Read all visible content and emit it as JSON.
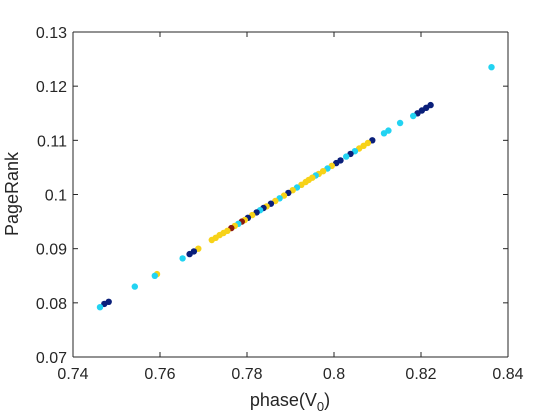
{
  "chart_data": {
    "type": "scatter",
    "title": "",
    "xlabel": {
      "base": "phase(V",
      "sub": "0",
      "close": ")"
    },
    "ylabel": "PageRank",
    "xlim": [
      0.74,
      0.84
    ],
    "ylim": [
      0.07,
      0.13
    ],
    "grid": false,
    "xticks": [
      0.74,
      0.76,
      0.78,
      0.8,
      0.82,
      0.84
    ],
    "yticks": [
      0.07,
      0.08,
      0.09,
      0.1,
      0.11,
      0.12,
      0.13
    ],
    "xtick_labels": [
      "0.74",
      "0.76",
      "0.78",
      "0.8",
      "0.82",
      "0.84"
    ],
    "ytick_labels": [
      "0.07",
      "0.08",
      "0.09",
      "0.1",
      "0.11",
      "0.12",
      "0.13"
    ],
    "colors": {
      "navy": "#0a1f7a",
      "cyan": "#22d3f2",
      "yellow": "#f7d218",
      "darkred": "#8a1a10"
    },
    "points": [
      {
        "x": 0.8362,
        "y": 0.1235,
        "c": "cyan"
      },
      {
        "x": 0.8222,
        "y": 0.1165,
        "c": "navy"
      },
      {
        "x": 0.8212,
        "y": 0.116,
        "c": "navy"
      },
      {
        "x": 0.8202,
        "y": 0.1155,
        "c": "navy"
      },
      {
        "x": 0.8192,
        "y": 0.115,
        "c": "navy"
      },
      {
        "x": 0.8182,
        "y": 0.1145,
        "c": "cyan"
      },
      {
        "x": 0.8152,
        "y": 0.1132,
        "c": "cyan"
      },
      {
        "x": 0.8125,
        "y": 0.1118,
        "c": "cyan"
      },
      {
        "x": 0.8115,
        "y": 0.1113,
        "c": "cyan"
      },
      {
        "x": 0.8088,
        "y": 0.11,
        "c": "navy"
      },
      {
        "x": 0.8078,
        "y": 0.1095,
        "c": "yellow"
      },
      {
        "x": 0.8068,
        "y": 0.109,
        "c": "yellow"
      },
      {
        "x": 0.8058,
        "y": 0.1085,
        "c": "yellow"
      },
      {
        "x": 0.8048,
        "y": 0.108,
        "c": "cyan"
      },
      {
        "x": 0.8038,
        "y": 0.1075,
        "c": "navy"
      },
      {
        "x": 0.8028,
        "y": 0.107,
        "c": "cyan"
      },
      {
        "x": 0.8015,
        "y": 0.1063,
        "c": "navy"
      },
      {
        "x": 0.8005,
        "y": 0.1058,
        "c": "navy"
      },
      {
        "x": 0.7995,
        "y": 0.1053,
        "c": "yellow"
      },
      {
        "x": 0.7985,
        "y": 0.1048,
        "c": "cyan"
      },
      {
        "x": 0.7975,
        "y": 0.1043,
        "c": "yellow"
      },
      {
        "x": 0.7965,
        "y": 0.1038,
        "c": "yellow"
      },
      {
        "x": 0.7958,
        "y": 0.1035,
        "c": "cyan"
      },
      {
        "x": 0.795,
        "y": 0.1031,
        "c": "yellow"
      },
      {
        "x": 0.7942,
        "y": 0.1027,
        "c": "yellow"
      },
      {
        "x": 0.7935,
        "y": 0.1023,
        "c": "yellow"
      },
      {
        "x": 0.7925,
        "y": 0.1018,
        "c": "yellow"
      },
      {
        "x": 0.7915,
        "y": 0.1013,
        "c": "cyan"
      },
      {
        "x": 0.7905,
        "y": 0.1008,
        "c": "yellow"
      },
      {
        "x": 0.7895,
        "y": 0.1003,
        "c": "navy"
      },
      {
        "x": 0.7885,
        "y": 0.0998,
        "c": "yellow"
      },
      {
        "x": 0.7875,
        "y": 0.0993,
        "c": "cyan"
      },
      {
        "x": 0.7865,
        "y": 0.0988,
        "c": "yellow"
      },
      {
        "x": 0.7855,
        "y": 0.0983,
        "c": "navy"
      },
      {
        "x": 0.7845,
        "y": 0.0978,
        "c": "yellow"
      },
      {
        "x": 0.7838,
        "y": 0.0975,
        "c": "navy"
      },
      {
        "x": 0.783,
        "y": 0.0971,
        "c": "cyan"
      },
      {
        "x": 0.7822,
        "y": 0.0967,
        "c": "navy"
      },
      {
        "x": 0.7812,
        "y": 0.0962,
        "c": "yellow"
      },
      {
        "x": 0.7802,
        "y": 0.0957,
        "c": "navy"
      },
      {
        "x": 0.7795,
        "y": 0.0953,
        "c": "yellow"
      },
      {
        "x": 0.7788,
        "y": 0.095,
        "c": "darkred"
      },
      {
        "x": 0.778,
        "y": 0.0946,
        "c": "cyan"
      },
      {
        "x": 0.7772,
        "y": 0.0942,
        "c": "yellow"
      },
      {
        "x": 0.7764,
        "y": 0.0938,
        "c": "darkred"
      },
      {
        "x": 0.7755,
        "y": 0.0933,
        "c": "yellow"
      },
      {
        "x": 0.7746,
        "y": 0.0929,
        "c": "yellow"
      },
      {
        "x": 0.7737,
        "y": 0.0925,
        "c": "yellow"
      },
      {
        "x": 0.7728,
        "y": 0.092,
        "c": "yellow"
      },
      {
        "x": 0.7719,
        "y": 0.0916,
        "c": "yellow"
      },
      {
        "x": 0.7688,
        "y": 0.09,
        "c": "yellow"
      },
      {
        "x": 0.7678,
        "y": 0.0895,
        "c": "navy"
      },
      {
        "x": 0.7668,
        "y": 0.089,
        "c": "navy"
      },
      {
        "x": 0.7652,
        "y": 0.0882,
        "c": "cyan"
      },
      {
        "x": 0.7593,
        "y": 0.0853,
        "c": "yellow"
      },
      {
        "x": 0.7588,
        "y": 0.085,
        "c": "cyan"
      },
      {
        "x": 0.7542,
        "y": 0.083,
        "c": "cyan"
      },
      {
        "x": 0.7482,
        "y": 0.0802,
        "c": "navy"
      },
      {
        "x": 0.7472,
        "y": 0.0798,
        "c": "navy"
      },
      {
        "x": 0.7462,
        "y": 0.0792,
        "c": "cyan"
      }
    ]
  }
}
